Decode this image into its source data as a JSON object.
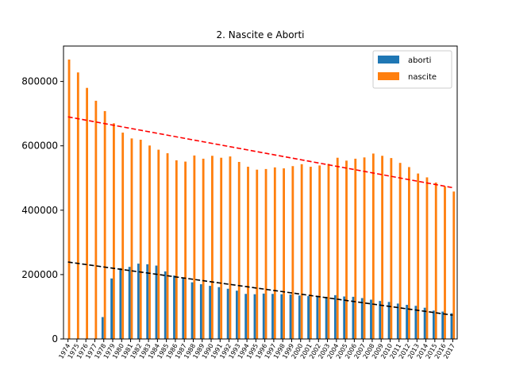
{
  "chart_data": {
    "type": "bar",
    "title": "2. Nascite e Aborti",
    "xlabel": "",
    "ylabel": "",
    "categories": [
      "1974",
      "1975",
      "1976",
      "1977",
      "1978",
      "1979",
      "1980",
      "1981",
      "1982",
      "1983",
      "1984",
      "1985",
      "1986",
      "1987",
      "1988",
      "1989",
      "1990",
      "1991",
      "1992",
      "1993",
      "1994",
      "1995",
      "1996",
      "1997",
      "1998",
      "1999",
      "2000",
      "2001",
      "2002",
      "2003",
      "2004",
      "2005",
      "2006",
      "2007",
      "2008",
      "2009",
      "2010",
      "2011",
      "2012",
      "2013",
      "2014",
      "2015",
      "2016",
      "2017"
    ],
    "series": [
      {
        "name": "aborti",
        "color": "#1f77b4",
        "values": [
          0,
          0,
          0,
          0,
          68000,
          188000,
          220000,
          224000,
          234000,
          232000,
          228000,
          210000,
          197000,
          191000,
          176000,
          170000,
          165000,
          161000,
          156000,
          150000,
          140000,
          139000,
          141000,
          140000,
          139000,
          138000,
          135000,
          133000,
          134000,
          131000,
          136000,
          132000,
          131000,
          127000,
          122000,
          118000,
          115000,
          110000,
          106000,
          103000,
          97000,
          88000,
          85000,
          80000
        ]
      },
      {
        "name": "nascite",
        "color": "#ff7f0e",
        "values": [
          868000,
          828000,
          780000,
          740000,
          708000,
          670000,
          641000,
          623000,
          619000,
          601000,
          588000,
          577000,
          555000,
          551000,
          570000,
          560000,
          569000,
          563000,
          567000,
          550000,
          535000,
          526000,
          528000,
          533000,
          530000,
          537000,
          543000,
          535000,
          539000,
          544000,
          563000,
          554000,
          560000,
          564000,
          576000,
          569000,
          562000,
          547000,
          534000,
          514000,
          502000,
          486000,
          474000,
          458000
        ]
      }
    ],
    "trendlines": [
      {
        "series": "nascite",
        "style": "dashed",
        "color": "#ff0000",
        "start": [
          1974,
          690000
        ],
        "end": [
          2017,
          470000
        ]
      },
      {
        "series": "aborti",
        "style": "dashed",
        "color": "#000000",
        "start": [
          1974,
          239000
        ],
        "end": [
          2017,
          74000
        ]
      }
    ],
    "yticks": [
      0,
      200000,
      400000,
      600000,
      800000
    ],
    "ytick_labels": [
      "0",
      "200000",
      "400000",
      "600000",
      "800000"
    ],
    "ylim": [
      0,
      910000
    ],
    "legend": {
      "position": "top-right",
      "entries": [
        "aborti",
        "nascite"
      ]
    },
    "grid": false,
    "xtick_rotation": 60
  }
}
